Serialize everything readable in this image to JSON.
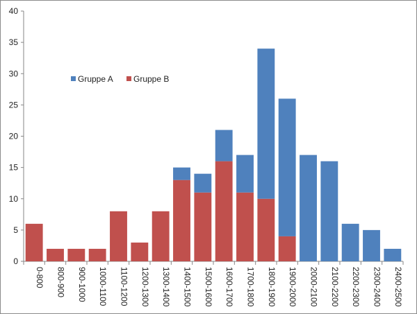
{
  "chart_data": {
    "type": "bar",
    "stacked": true,
    "categories": [
      "0-800",
      "800-900",
      "900-1000",
      "1000-1100",
      "1100-1200",
      "1200-1300",
      "1300-1400",
      "1400-1500",
      "1500-1600",
      "1600-1700",
      "1700-1800",
      "1800-1900",
      "1900-2000",
      "2000-2100",
      "2100-2200",
      "2200-2300",
      "2300-2400",
      "2400-2500"
    ],
    "series": [
      {
        "name": "Gruppe B",
        "color": "#c0504d",
        "values": [
          6,
          2,
          2,
          2,
          8,
          3,
          8,
          13,
          11,
          16,
          11,
          10,
          4,
          0,
          0,
          0,
          0,
          0
        ]
      },
      {
        "name": "Gruppe A",
        "color": "#4f81bd",
        "values": [
          0,
          0,
          0,
          0,
          0,
          0,
          0,
          2,
          3,
          5,
          6,
          24,
          22,
          17,
          16,
          6,
          5,
          2
        ]
      }
    ],
    "legend_order": [
      "Gruppe A",
      "Gruppe B"
    ],
    "ylim": [
      0,
      40
    ],
    "yticks": [
      0,
      5,
      10,
      15,
      20,
      25,
      30,
      35,
      40
    ],
    "grid": false,
    "legend": "upper-left-inside",
    "title": "",
    "xlabel": "",
    "ylabel": ""
  }
}
